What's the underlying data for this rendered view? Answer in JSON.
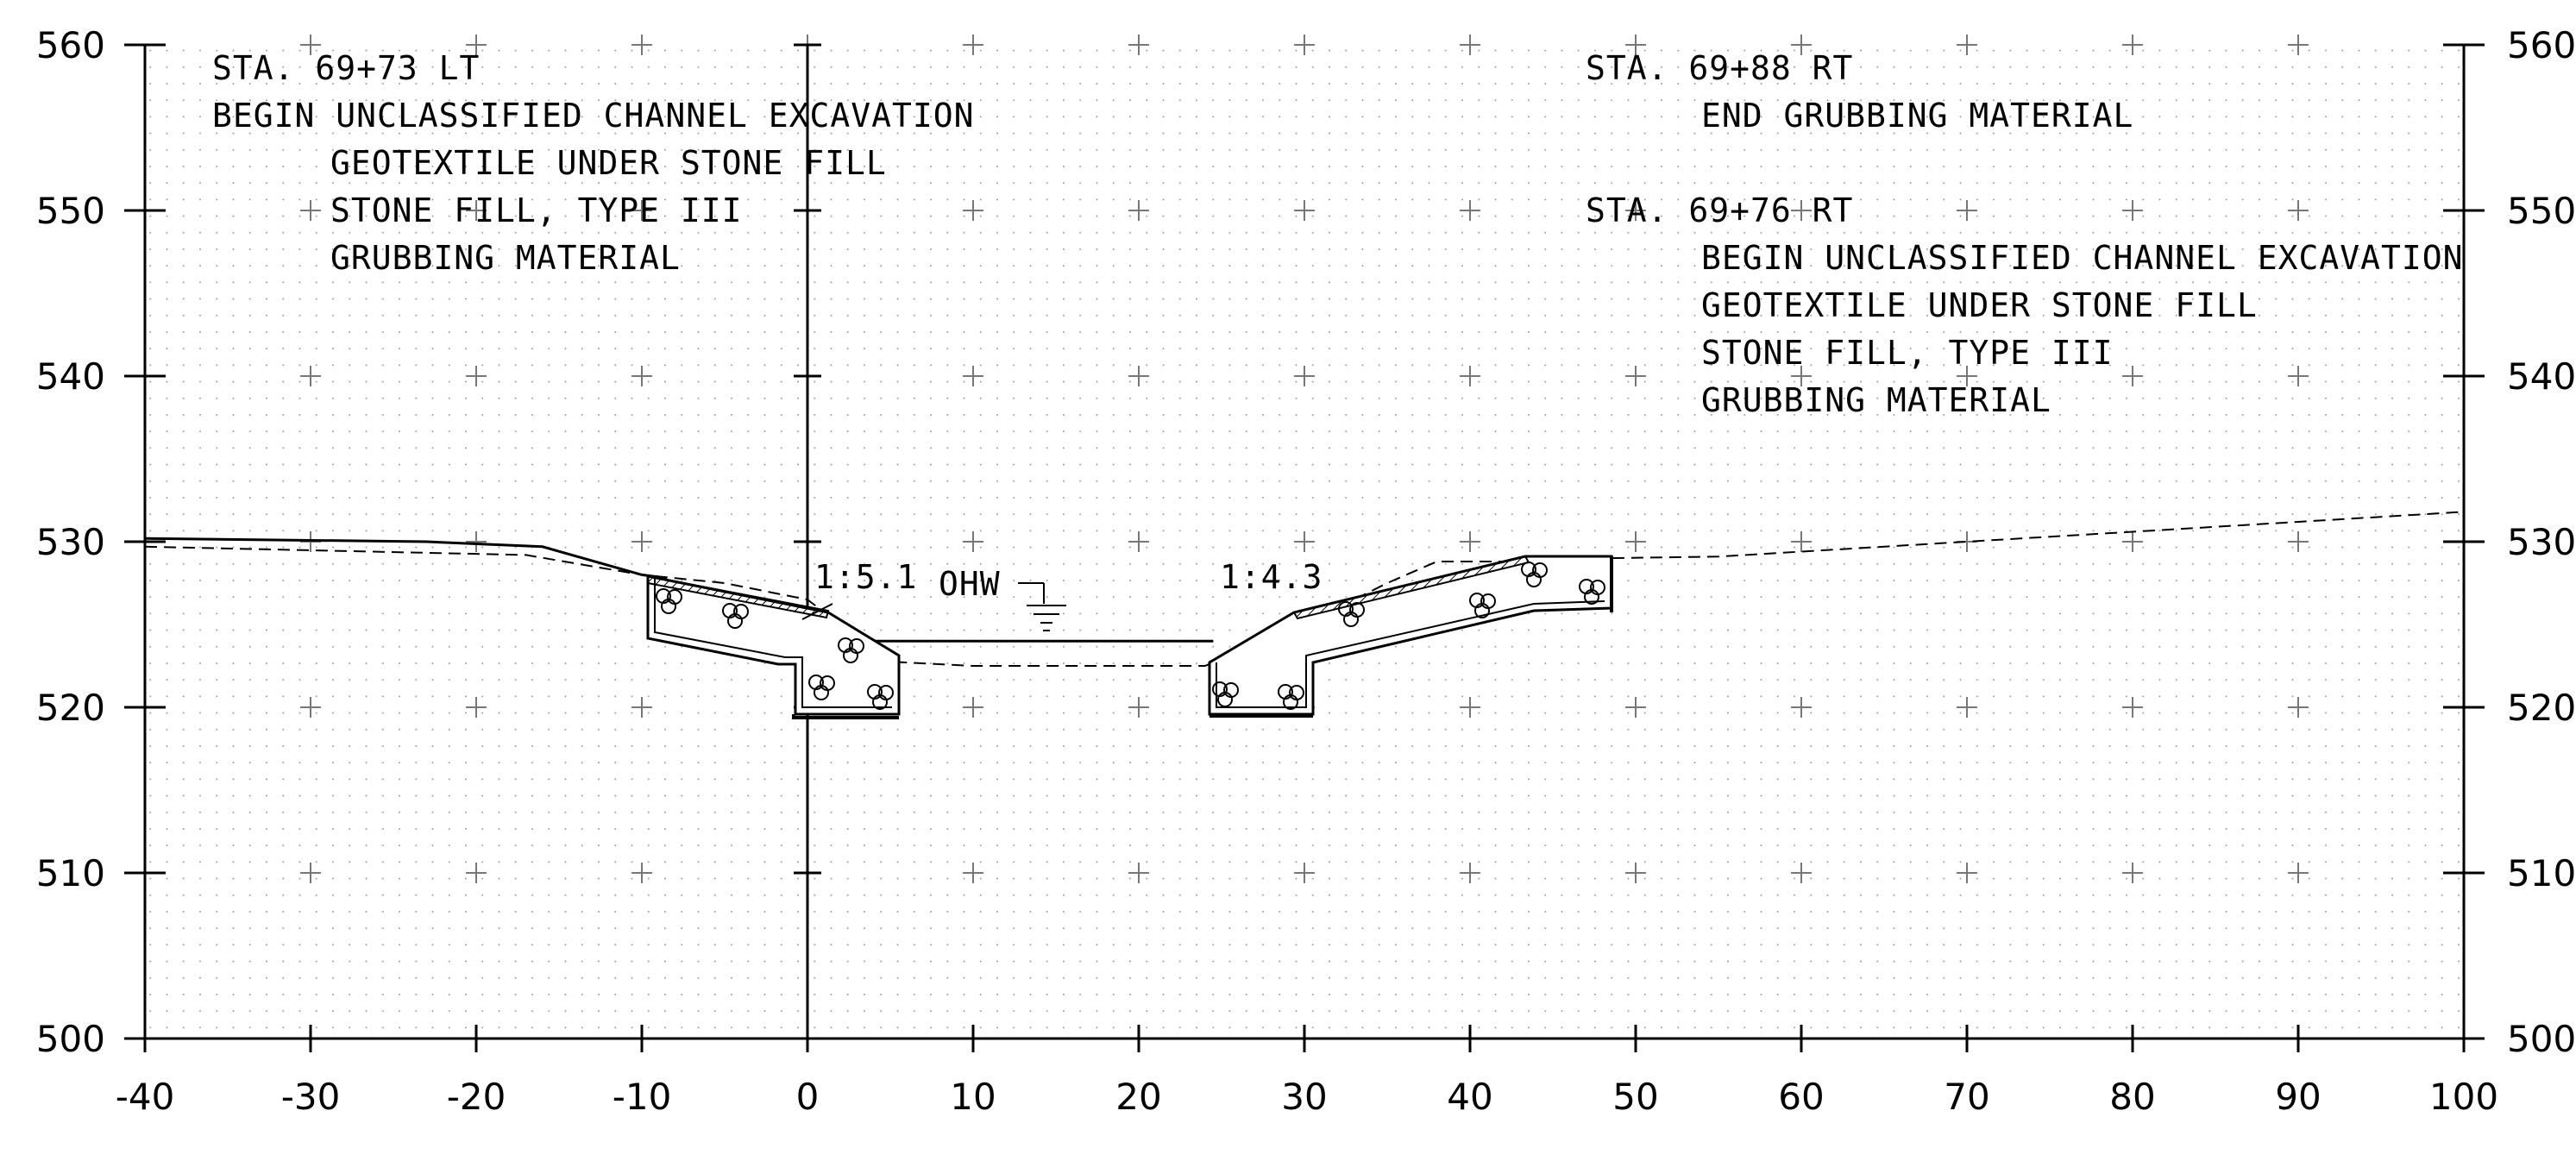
{
  "axes": {
    "x_ticks": [
      "-40",
      "-30",
      "-20",
      "-10",
      "0",
      "10",
      "20",
      "30",
      "40",
      "50",
      "60",
      "70",
      "80",
      "90",
      "100"
    ],
    "y_ticks_left": [
      "560",
      "550",
      "540",
      "530",
      "520",
      "510",
      "500"
    ],
    "y_ticks_right": [
      "560",
      "550",
      "540",
      "530",
      "520",
      "510",
      "500"
    ]
  },
  "notes_left": {
    "station": "STA. 69+73 LT",
    "line1": "BEGIN UNCLASSIFIED CHANNEL EXCAVATION",
    "line2": "GEOTEXTILE UNDER STONE FILL",
    "line3": "STONE FILL, TYPE III",
    "line4": "GRUBBING MATERIAL"
  },
  "notes_right_top": {
    "station": "STA. 69+88 RT",
    "line1": "END GRUBBING MATERIAL"
  },
  "notes_right_mid": {
    "station": "STA. 69+76 RT",
    "line1": "BEGIN UNCLASSIFIED CHANNEL EXCAVATION",
    "line2": "GEOTEXTILE UNDER STONE FILL",
    "line3": "STONE FILL, TYPE III",
    "line4": "GRUBBING MATERIAL"
  },
  "annotations": {
    "slope_left": "1:5.1",
    "slope_right": "1:4.3",
    "water_label": "OHW"
  },
  "chart_data": {
    "type": "line",
    "x_range": [
      -40,
      100
    ],
    "y_range": [
      500,
      560
    ],
    "grid": true,
    "series": [
      {
        "style": "solid",
        "x": [
          -40,
          -23,
          -16,
          -10,
          -8.5
        ],
        "y": [
          530.2,
          530.0,
          529.7,
          528.0,
          527.8
        ]
      },
      {
        "style": "dashed",
        "x": [
          -40,
          -17,
          -10,
          -5,
          0,
          2,
          4,
          10,
          20,
          24,
          30,
          35,
          38,
          45,
          48,
          55,
          60,
          70,
          80,
          90,
          100
        ],
        "y": [
          529.7,
          529.2,
          528.0,
          527.5,
          526.5,
          525.0,
          522.8,
          522.5,
          522.5,
          522.5,
          525.0,
          527.5,
          528.8,
          528.8,
          529.0,
          529.1,
          529.4,
          530.0,
          530.6,
          531.2,
          531.8
        ]
      },
      {
        "style": "solid",
        "x": [
          4,
          24.5
        ],
        "y": [
          524.0,
          524.0
        ]
      }
    ]
  }
}
